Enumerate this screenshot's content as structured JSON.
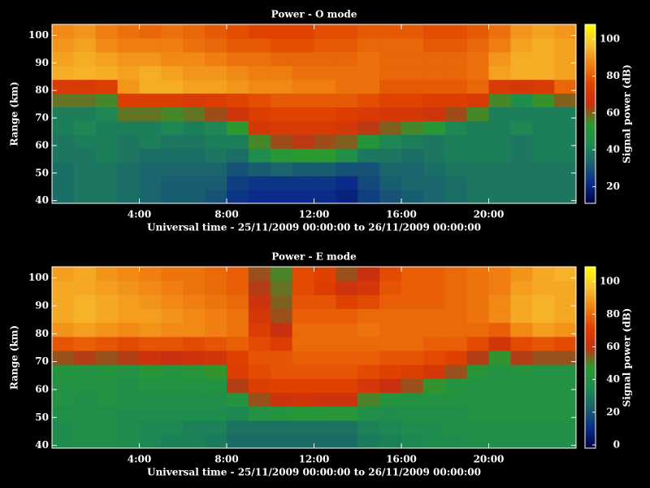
{
  "chart_data": [
    {
      "type": "heatmap",
      "title": "Power - O mode",
      "x_label": "Universal time - 25/11/2009 00:00:00 to 26/11/2009 00:00:00",
      "y_label": "Range (km)",
      "colorbar_label": "Signal power (dB)",
      "x": [
        0.5,
        1.5,
        2.5,
        3.5,
        4.5,
        5.5,
        6.5,
        7.5,
        8.5,
        9.5,
        10.5,
        11.5,
        12.5,
        13.5,
        14.5,
        15.5,
        16.5,
        17.5,
        18.5,
        19.5,
        20.5,
        21.5,
        22.5,
        23.5
      ],
      "y": [
        41.5,
        46.5,
        51.5,
        56.5,
        61.5,
        66.5,
        71.5,
        76.5,
        81.5,
        86.5,
        91.5,
        96.5,
        101.5
      ],
      "z": [
        [
          36,
          38,
          38,
          36,
          34,
          32,
          32,
          30,
          24,
          22,
          22,
          22,
          22,
          20,
          26,
          30,
          32,
          34,
          36,
          38,
          38,
          38,
          38,
          38
        ],
        [
          36,
          38,
          38,
          36,
          34,
          32,
          32,
          32,
          26,
          24,
          24,
          24,
          24,
          22,
          28,
          32,
          34,
          34,
          36,
          38,
          38,
          38,
          38,
          38
        ],
        [
          36,
          38,
          38,
          36,
          34,
          34,
          34,
          34,
          30,
          32,
          34,
          32,
          32,
          30,
          30,
          34,
          34,
          36,
          38,
          38,
          38,
          38,
          38,
          38
        ],
        [
          38,
          38,
          40,
          38,
          36,
          36,
          36,
          38,
          36,
          44,
          52,
          54,
          54,
          46,
          38,
          38,
          36,
          38,
          40,
          40,
          40,
          38,
          40,
          40
        ],
        [
          38,
          40,
          40,
          38,
          40,
          38,
          38,
          40,
          40,
          56,
          62,
          64,
          62,
          60,
          50,
          42,
          40,
          38,
          40,
          40,
          40,
          38,
          40,
          40
        ],
        [
          40,
          42,
          40,
          40,
          40,
          42,
          40,
          42,
          54,
          70,
          72,
          72,
          72,
          70,
          64,
          60,
          56,
          52,
          42,
          40,
          40,
          42,
          40,
          40
        ],
        [
          40,
          40,
          42,
          58,
          58,
          56,
          58,
          62,
          68,
          74,
          76,
          76,
          76,
          74,
          72,
          70,
          70,
          68,
          62,
          56,
          40,
          40,
          40,
          40
        ],
        [
          58,
          58,
          56,
          74,
          74,
          74,
          72,
          74,
          76,
          78,
          80,
          80,
          80,
          80,
          78,
          76,
          76,
          74,
          74,
          72,
          56,
          45,
          55,
          60
        ],
        [
          72,
          72,
          74,
          90,
          94,
          94,
          92,
          92,
          90,
          88,
          88,
          86,
          86,
          84,
          84,
          80,
          80,
          80,
          80,
          82,
          72,
          70,
          72,
          82
        ],
        [
          94,
          95,
          94,
          92,
          94,
          92,
          90,
          90,
          88,
          86,
          86,
          84,
          84,
          84,
          84,
          82,
          82,
          82,
          82,
          84,
          92,
          94,
          94,
          92
        ],
        [
          92,
          94,
          92,
          90,
          90,
          88,
          88,
          86,
          84,
          84,
          82,
          82,
          82,
          82,
          84,
          82,
          82,
          82,
          82,
          84,
          90,
          94,
          94,
          92
        ],
        [
          90,
          92,
          88,
          86,
          86,
          86,
          84,
          82,
          80,
          80,
          78,
          78,
          80,
          80,
          82,
          82,
          82,
          80,
          80,
          82,
          86,
          92,
          94,
          92
        ],
        [
          88,
          90,
          86,
          84,
          82,
          84,
          82,
          80,
          78,
          76,
          76,
          76,
          78,
          78,
          80,
          80,
          80,
          78,
          78,
          80,
          84,
          90,
          92,
          90
        ]
      ],
      "xlim": [
        0,
        24
      ],
      "ylim": [
        39,
        104
      ],
      "xticks": [
        {
          "value": 4,
          "label": "4:00"
        },
        {
          "value": 8,
          "label": "8:00"
        },
        {
          "value": 12,
          "label": "12:00"
        },
        {
          "value": 16,
          "label": "16:00"
        },
        {
          "value": 20,
          "label": "20:00"
        }
      ],
      "yticks": [
        40,
        50,
        60,
        70,
        80,
        90,
        100
      ],
      "zlim": [
        11,
        108
      ],
      "zticks": [
        20,
        40,
        60,
        80,
        100
      ],
      "colorscale": [
        "#000040",
        "#0a2a8a",
        "#1a6070",
        "#1e8c50",
        "#2a9a30",
        "#c83010",
        "#e04000",
        "#f08010",
        "#f8c030",
        "#ffff00"
      ]
    },
    {
      "type": "heatmap",
      "title": "Power - E mode",
      "x_label": "Universal time - 25/11/2009 00:00:00 to 26/11/2009 00:00:00",
      "y_label": "Range (km)",
      "colorbar_label": "Signal power (dB)",
      "x": [
        0.5,
        1.5,
        2.5,
        3.5,
        4.5,
        5.5,
        6.5,
        7.5,
        8.5,
        9.5,
        10.5,
        11.5,
        12.5,
        13.5,
        14.5,
        15.5,
        16.5,
        17.5,
        18.5,
        19.5,
        20.5,
        21.5,
        22.5,
        23.5
      ],
      "y": [
        41.5,
        46.5,
        51.5,
        56.5,
        61.5,
        66.5,
        71.5,
        76.5,
        81.5,
        86.5,
        91.5,
        96.5,
        101.5
      ],
      "z": [
        [
          36,
          38,
          38,
          36,
          34,
          32,
          32,
          30,
          26,
          26,
          26,
          26,
          26,
          26,
          30,
          32,
          34,
          36,
          36,
          38,
          38,
          38,
          38,
          38
        ],
        [
          36,
          38,
          38,
          36,
          34,
          34,
          32,
          32,
          28,
          28,
          28,
          28,
          28,
          28,
          32,
          34,
          36,
          36,
          38,
          38,
          38,
          38,
          38,
          38
        ],
        [
          38,
          38,
          38,
          36,
          36,
          36,
          36,
          36,
          34,
          40,
          42,
          44,
          44,
          44,
          38,
          36,
          38,
          38,
          38,
          40,
          40,
          40,
          40,
          40
        ],
        [
          40,
          38,
          40,
          38,
          38,
          38,
          38,
          38,
          42,
          56,
          62,
          64,
          62,
          62,
          50,
          42,
          40,
          40,
          40,
          40,
          40,
          40,
          40,
          40
        ],
        [
          40,
          40,
          40,
          38,
          40,
          40,
          40,
          40,
          58,
          70,
          72,
          72,
          72,
          72,
          66,
          60,
          56,
          48,
          42,
          40,
          40,
          40,
          40,
          40
        ],
        [
          42,
          40,
          42,
          40,
          44,
          42,
          44,
          48,
          70,
          74,
          76,
          76,
          76,
          76,
          74,
          72,
          70,
          66,
          56,
          44,
          40,
          42,
          40,
          40
        ],
        [
          56,
          58,
          56,
          58,
          62,
          60,
          62,
          64,
          72,
          76,
          76,
          78,
          78,
          78,
          78,
          76,
          76,
          74,
          72,
          58,
          48,
          58,
          56,
          56
        ],
        [
          76,
          78,
          76,
          74,
          76,
          76,
          74,
          76,
          78,
          74,
          70,
          80,
          80,
          80,
          80,
          80,
          80,
          78,
          78,
          74,
          64,
          74,
          76,
          74
        ],
        [
          88,
          90,
          88,
          86,
          88,
          86,
          86,
          84,
          82,
          70,
          60,
          80,
          80,
          80,
          82,
          80,
          80,
          80,
          80,
          80,
          78,
          86,
          90,
          88
        ],
        [
          92,
          94,
          92,
          90,
          90,
          88,
          86,
          84,
          82,
          66,
          56,
          78,
          78,
          78,
          80,
          80,
          80,
          80,
          80,
          82,
          86,
          92,
          94,
          92
        ],
        [
          92,
          94,
          92,
          90,
          88,
          86,
          84,
          82,
          80,
          62,
          54,
          76,
          76,
          72,
          74,
          78,
          78,
          78,
          80,
          82,
          86,
          92,
          94,
          92
        ],
        [
          92,
          92,
          90,
          88,
          86,
          84,
          82,
          80,
          78,
          58,
          52,
          74,
          70,
          62,
          66,
          76,
          78,
          78,
          80,
          82,
          84,
          90,
          92,
          92
        ],
        [
          90,
          92,
          88,
          86,
          84,
          82,
          82,
          80,
          78,
          56,
          50,
          74,
          72,
          56,
          60,
          74,
          78,
          78,
          80,
          82,
          84,
          88,
          92,
          94
        ]
      ],
      "xlim": [
        0,
        24
      ],
      "ylim": [
        39,
        104
      ],
      "xticks": [
        {
          "value": 4,
          "label": "4:00"
        },
        {
          "value": 8,
          "label": "8:00"
        },
        {
          "value": 12,
          "label": "12:00"
        },
        {
          "value": 16,
          "label": "16:00"
        },
        {
          "value": 20,
          "label": "20:00"
        }
      ],
      "yticks": [
        40,
        50,
        60,
        70,
        80,
        90,
        100
      ],
      "zlim": [
        -2,
        109
      ],
      "zticks": [
        0,
        20,
        40,
        60,
        80,
        100
      ],
      "colorscale": [
        "#000040",
        "#0a2a8a",
        "#1a6070",
        "#1e8c50",
        "#2a9a30",
        "#c83010",
        "#e04000",
        "#f08010",
        "#f8c030",
        "#ffff00"
      ]
    }
  ]
}
